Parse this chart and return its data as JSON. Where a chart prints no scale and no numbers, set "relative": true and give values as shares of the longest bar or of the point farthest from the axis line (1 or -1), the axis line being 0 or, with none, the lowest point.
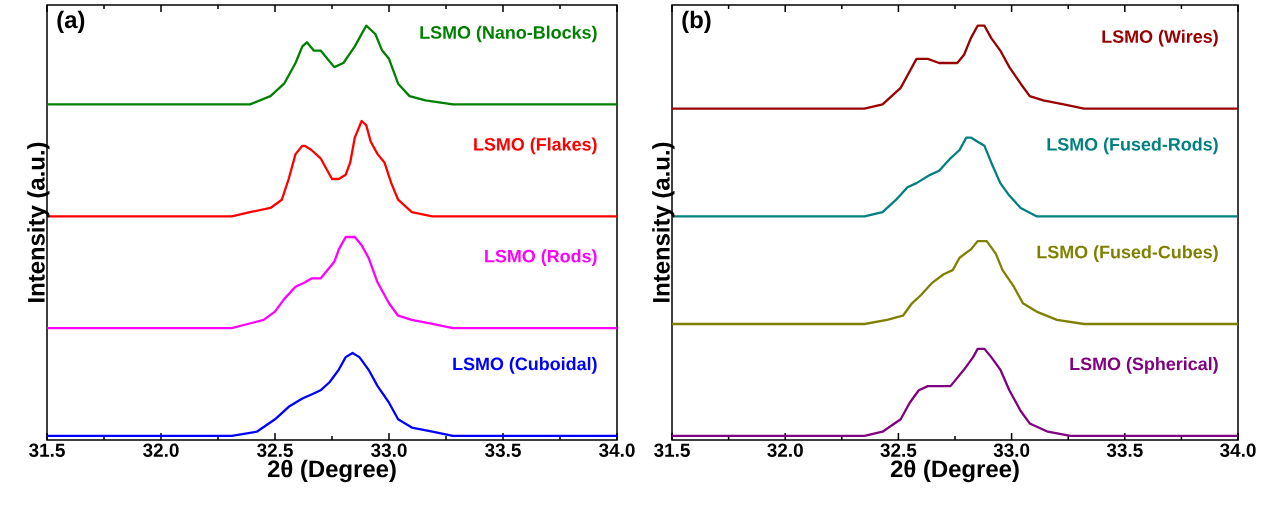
{
  "chart_data": [
    {
      "type": "line",
      "relative": true,
      "xlabel": "2θ (Degree)",
      "ylabel": "Intensity (a.u.)",
      "annotations": [
        "(a)"
      ],
      "xlim": [
        31.5,
        34.0
      ],
      "xticks": [
        {
          "value": 31.5,
          "label": "31.5"
        },
        {
          "value": 32.0,
          "label": "32.0"
        },
        {
          "value": 32.5,
          "label": "32.5"
        },
        {
          "value": 33.0,
          "label": "33.0"
        },
        {
          "value": 33.5,
          "label": "33.5"
        },
        {
          "value": 34.0,
          "label": "34.0"
        }
      ],
      "series": [
        {
          "name": "LSMO (Nano-Blocks)",
          "color": "#008000",
          "x": [
            31.5,
            32.31,
            32.39,
            32.48,
            32.54,
            32.59,
            32.62,
            32.64,
            32.67,
            32.7,
            32.73,
            32.76,
            32.8,
            32.85,
            32.9,
            32.94,
            32.97,
            33.0,
            33.04,
            33.09,
            33.16,
            33.28,
            34.0
          ],
          "values": [
            0.81,
            0.81,
            0.81,
            0.83,
            0.86,
            0.91,
            0.95,
            0.96,
            0.94,
            0.94,
            0.92,
            0.9,
            0.91,
            0.95,
            1.0,
            0.98,
            0.94,
            0.92,
            0.86,
            0.83,
            0.82,
            0.81,
            0.81
          ]
        },
        {
          "name": "LSMO (Flakes)",
          "color": "#ff0000",
          "x": [
            31.5,
            32.31,
            32.39,
            32.48,
            32.53,
            32.56,
            32.59,
            32.62,
            32.63,
            32.66,
            32.7,
            32.73,
            32.75,
            32.78,
            32.81,
            32.83,
            32.85,
            32.88,
            32.9,
            32.92,
            32.95,
            32.98,
            33.01,
            33.04,
            33.1,
            33.19,
            33.28,
            34.0
          ],
          "values": [
            0.54,
            0.54,
            0.55,
            0.56,
            0.58,
            0.63,
            0.69,
            0.71,
            0.71,
            0.7,
            0.68,
            0.65,
            0.63,
            0.63,
            0.64,
            0.67,
            0.73,
            0.77,
            0.76,
            0.72,
            0.69,
            0.67,
            0.62,
            0.58,
            0.55,
            0.54,
            0.54,
            0.54
          ]
        },
        {
          "name": "LSMO (Rods)",
          "color": "#ff00ff",
          "x": [
            31.5,
            32.31,
            32.38,
            32.45,
            32.5,
            32.54,
            32.59,
            32.63,
            32.66,
            32.7,
            32.73,
            32.76,
            32.78,
            32.81,
            32.85,
            32.88,
            32.91,
            32.95,
            33.0,
            33.04,
            33.1,
            33.19,
            33.28,
            34.0
          ],
          "values": [
            0.27,
            0.27,
            0.28,
            0.29,
            0.31,
            0.34,
            0.37,
            0.38,
            0.39,
            0.39,
            0.41,
            0.43,
            0.46,
            0.49,
            0.49,
            0.47,
            0.44,
            0.38,
            0.33,
            0.3,
            0.29,
            0.28,
            0.27,
            0.27
          ]
        },
        {
          "name": "LSMO (Cuboidal)",
          "color": "#0000ff",
          "x": [
            31.5,
            32.31,
            32.42,
            32.5,
            32.56,
            32.62,
            32.66,
            32.7,
            32.74,
            32.78,
            32.81,
            32.84,
            32.87,
            32.91,
            32.95,
            33.0,
            33.04,
            33.1,
            33.19,
            33.28,
            34.0
          ],
          "values": [
            0.01,
            0.01,
            0.02,
            0.05,
            0.08,
            0.1,
            0.11,
            0.12,
            0.14,
            0.17,
            0.2,
            0.21,
            0.2,
            0.17,
            0.13,
            0.09,
            0.05,
            0.03,
            0.02,
            0.01,
            0.01
          ]
        }
      ]
    },
    {
      "type": "line",
      "relative": true,
      "xlabel": "2θ (Degree)",
      "ylabel": "Intensity (a.u.)",
      "annotations": [
        "(b)"
      ],
      "xlim": [
        31.5,
        34.0
      ],
      "xticks": [
        {
          "value": 31.5,
          "label": "31.5"
        },
        {
          "value": 32.0,
          "label": "32.0"
        },
        {
          "value": 32.5,
          "label": "32.5"
        },
        {
          "value": 33.0,
          "label": "33.0"
        },
        {
          "value": 33.5,
          "label": "33.5"
        },
        {
          "value": 34.0,
          "label": "34.0"
        }
      ],
      "series": [
        {
          "name": "LSMO (Wires)",
          "color": "#990000",
          "x": [
            31.5,
            32.35,
            32.43,
            32.51,
            32.55,
            32.58,
            32.63,
            32.68,
            32.73,
            32.76,
            32.79,
            32.82,
            32.85,
            32.88,
            32.91,
            32.95,
            32.99,
            33.04,
            33.08,
            33.14,
            33.23,
            33.32,
            34.0
          ],
          "values": [
            0.8,
            0.8,
            0.81,
            0.85,
            0.89,
            0.92,
            0.92,
            0.91,
            0.91,
            0.91,
            0.93,
            0.97,
            1.0,
            1.0,
            0.97,
            0.94,
            0.9,
            0.86,
            0.83,
            0.82,
            0.81,
            0.8,
            0.8
          ]
        },
        {
          "name": "LSMO (Fused-Rods)",
          "color": "#008080",
          "x": [
            31.5,
            32.35,
            32.43,
            32.49,
            32.54,
            32.58,
            32.64,
            32.68,
            32.73,
            32.77,
            32.8,
            32.82,
            32.85,
            32.88,
            32.91,
            32.95,
            32.99,
            33.04,
            33.11,
            33.23,
            33.32,
            34.0
          ],
          "values": [
            0.54,
            0.54,
            0.55,
            0.58,
            0.61,
            0.62,
            0.64,
            0.65,
            0.68,
            0.7,
            0.73,
            0.73,
            0.72,
            0.71,
            0.67,
            0.62,
            0.59,
            0.56,
            0.54,
            0.54,
            0.54,
            0.54
          ]
        },
        {
          "name": "LSMO (Fused-Cubes)",
          "color": "#808000",
          "x": [
            31.5,
            32.35,
            32.45,
            32.52,
            32.56,
            32.6,
            32.65,
            32.7,
            32.74,
            32.77,
            32.82,
            32.85,
            32.89,
            32.93,
            32.96,
            33.01,
            33.05,
            33.11,
            33.2,
            33.32,
            34.0
          ],
          "values": [
            0.28,
            0.28,
            0.29,
            0.3,
            0.33,
            0.35,
            0.38,
            0.4,
            0.41,
            0.44,
            0.46,
            0.48,
            0.48,
            0.45,
            0.41,
            0.37,
            0.33,
            0.31,
            0.29,
            0.28,
            0.28
          ]
        },
        {
          "name": "LSMO (Spherical)",
          "color": "#800080",
          "x": [
            31.5,
            32.35,
            32.43,
            32.51,
            32.55,
            32.59,
            32.63,
            32.68,
            32.73,
            32.76,
            32.79,
            32.83,
            32.85,
            32.88,
            32.91,
            32.95,
            32.99,
            33.04,
            33.08,
            33.16,
            33.26,
            34.0
          ],
          "values": [
            0.01,
            0.01,
            0.02,
            0.05,
            0.09,
            0.12,
            0.13,
            0.13,
            0.13,
            0.15,
            0.17,
            0.2,
            0.22,
            0.22,
            0.2,
            0.17,
            0.12,
            0.07,
            0.04,
            0.02,
            0.01,
            0.01
          ]
        }
      ]
    }
  ]
}
